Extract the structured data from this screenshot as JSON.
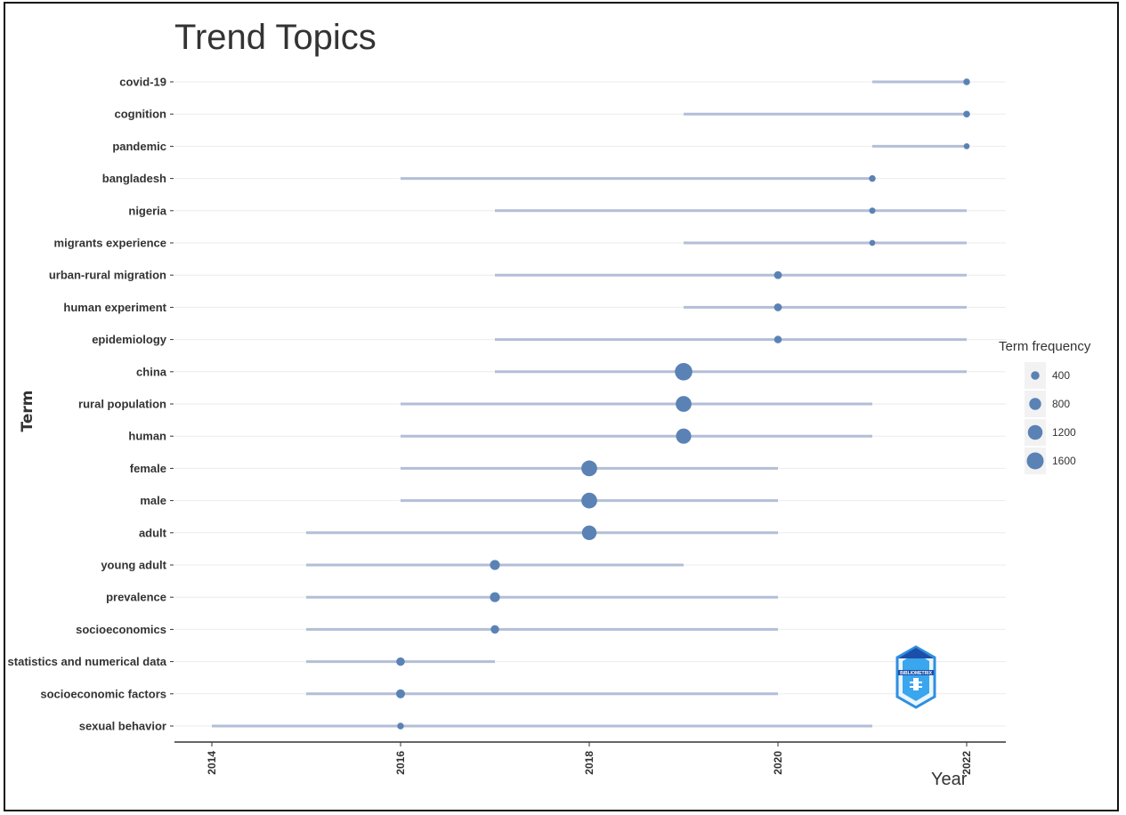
{
  "chart_data": {
    "type": "scatter",
    "title": "Trend Topics",
    "xlabel": "Year",
    "ylabel": "Term",
    "xlim": [
      2014,
      2022
    ],
    "xticks": [
      2014,
      2016,
      2018,
      2020,
      2022
    ],
    "grid": "horizontal",
    "legend_position": "right",
    "colors": {
      "point": "#5b82b5",
      "segment": "#b3bed8",
      "grid": "#ebebeb",
      "axis": "#333333"
    },
    "legend": {
      "title": "Term frequency",
      "items": [
        {
          "label": "400",
          "value": 400
        },
        {
          "label": "800",
          "value": 800
        },
        {
          "label": "1200",
          "value": 1200
        },
        {
          "label": "1600",
          "value": 1600
        }
      ]
    },
    "terms": [
      {
        "term": "covid-19",
        "start": 2021,
        "median": 2022,
        "end": 2022,
        "freq": 250
      },
      {
        "term": "cognition",
        "start": 2019,
        "median": 2022,
        "end": 2022,
        "freq": 250
      },
      {
        "term": "pandemic",
        "start": 2021,
        "median": 2022,
        "end": 2022,
        "freq": 200
      },
      {
        "term": "bangladesh",
        "start": 2016,
        "median": 2021,
        "end": 2021,
        "freq": 250
      },
      {
        "term": "nigeria",
        "start": 2017,
        "median": 2021,
        "end": 2022,
        "freq": 220
      },
      {
        "term": "migrants experience",
        "start": 2019,
        "median": 2021,
        "end": 2022,
        "freq": 200
      },
      {
        "term": "urban-rural migration",
        "start": 2017,
        "median": 2020,
        "end": 2022,
        "freq": 350
      },
      {
        "term": "human experiment",
        "start": 2019,
        "median": 2020,
        "end": 2022,
        "freq": 350
      },
      {
        "term": "epidemiology",
        "start": 2017,
        "median": 2020,
        "end": 2022,
        "freq": 320
      },
      {
        "term": "china",
        "start": 2017,
        "median": 2019,
        "end": 2022,
        "freq": 1700
      },
      {
        "term": "rural population",
        "start": 2016,
        "median": 2019,
        "end": 2021,
        "freq": 1400
      },
      {
        "term": "human",
        "start": 2016,
        "median": 2019,
        "end": 2021,
        "freq": 1300
      },
      {
        "term": "female",
        "start": 2016,
        "median": 2018,
        "end": 2020,
        "freq": 1400
      },
      {
        "term": "male",
        "start": 2016,
        "median": 2018,
        "end": 2020,
        "freq": 1400
      },
      {
        "term": "adult",
        "start": 2015,
        "median": 2018,
        "end": 2020,
        "freq": 1200
      },
      {
        "term": "young adult",
        "start": 2015,
        "median": 2017,
        "end": 2019,
        "freq": 550
      },
      {
        "term": "prevalence",
        "start": 2015,
        "median": 2017,
        "end": 2020,
        "freq": 550
      },
      {
        "term": "socioeconomics",
        "start": 2015,
        "median": 2017,
        "end": 2020,
        "freq": 400
      },
      {
        "term": "statistics and numerical data",
        "start": 2015,
        "median": 2016,
        "end": 2017,
        "freq": 400
      },
      {
        "term": "socioeconomic factors",
        "start": 2015,
        "median": 2016,
        "end": 2020,
        "freq": 450
      },
      {
        "term": "sexual behavior",
        "start": 2014,
        "median": 2016,
        "end": 2021,
        "freq": 250
      }
    ]
  },
  "logo": {
    "text": "BIBLIOMETRIX",
    "icon": "bibliometrix-logo"
  }
}
